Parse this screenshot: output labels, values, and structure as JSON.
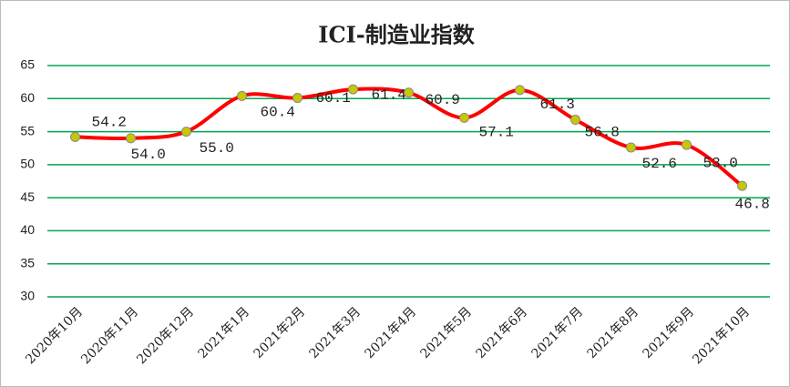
{
  "chart_data": {
    "type": "line",
    "title": "ICI-制造业指数",
    "categories": [
      "2020年10月",
      "2020年11月",
      "2020年12月",
      "2021年1月",
      "2021年2月",
      "2021年3月",
      "2021年4月",
      "2021年5月",
      "2021年6月",
      "2021年7月",
      "2021年8月",
      "2021年9月",
      "2021年10月"
    ],
    "values": [
      54.2,
      54.0,
      55.0,
      60.4,
      60.1,
      61.4,
      60.9,
      57.1,
      61.3,
      56.8,
      52.6,
      53.0,
      46.8
    ],
    "value_labels": [
      "54.2",
      "54.0",
      "55.0",
      "60.4",
      "60.1",
      "61.4",
      "60.9",
      "57.1",
      "61.3",
      "56.8",
      "52.6",
      "53.0",
      "46.8"
    ],
    "color": "#ff0000",
    "marker_color": "#c8c800",
    "ylim": [
      30,
      65
    ],
    "yticks": [
      30,
      35,
      40,
      45,
      50,
      55,
      60,
      65
    ],
    "grid": true,
    "grid_color": "#00a651"
  }
}
